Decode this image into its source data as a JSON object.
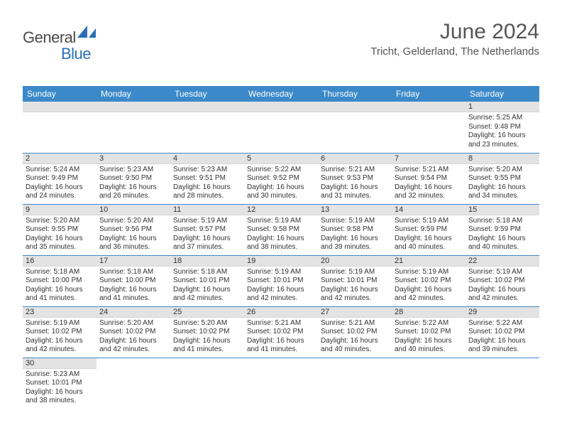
{
  "logo": {
    "part1": "General",
    "part2": "Blue"
  },
  "title": "June 2024",
  "location": "Tricht, Gelderland, The Netherlands",
  "header_bg": "#3b89c9",
  "header_text_color": "#ffffff",
  "daynum_bg": "#e3e3e3",
  "cell_border_color": "#3b89c9",
  "text_color": "#333333",
  "logo_accent": "#2a6fb5",
  "days_of_week": [
    "Sunday",
    "Monday",
    "Tuesday",
    "Wednesday",
    "Thursday",
    "Friday",
    "Saturday"
  ],
  "weeks": [
    [
      null,
      null,
      null,
      null,
      null,
      null,
      {
        "n": "1",
        "sunrise": "5:25 AM",
        "sunset": "9:48 PM",
        "dl_h": "16",
        "dl_m": "23"
      }
    ],
    [
      {
        "n": "2",
        "sunrise": "5:24 AM",
        "sunset": "9:49 PM",
        "dl_h": "16",
        "dl_m": "24"
      },
      {
        "n": "3",
        "sunrise": "5:23 AM",
        "sunset": "9:50 PM",
        "dl_h": "16",
        "dl_m": "26"
      },
      {
        "n": "4",
        "sunrise": "5:23 AM",
        "sunset": "9:51 PM",
        "dl_h": "16",
        "dl_m": "28"
      },
      {
        "n": "5",
        "sunrise": "5:22 AM",
        "sunset": "9:52 PM",
        "dl_h": "16",
        "dl_m": "30"
      },
      {
        "n": "6",
        "sunrise": "5:21 AM",
        "sunset": "9:53 PM",
        "dl_h": "16",
        "dl_m": "31"
      },
      {
        "n": "7",
        "sunrise": "5:21 AM",
        "sunset": "9:54 PM",
        "dl_h": "16",
        "dl_m": "32"
      },
      {
        "n": "8",
        "sunrise": "5:20 AM",
        "sunset": "9:55 PM",
        "dl_h": "16",
        "dl_m": "34"
      }
    ],
    [
      {
        "n": "9",
        "sunrise": "5:20 AM",
        "sunset": "9:55 PM",
        "dl_h": "16",
        "dl_m": "35"
      },
      {
        "n": "10",
        "sunrise": "5:20 AM",
        "sunset": "9:56 PM",
        "dl_h": "16",
        "dl_m": "36"
      },
      {
        "n": "11",
        "sunrise": "5:19 AM",
        "sunset": "9:57 PM",
        "dl_h": "16",
        "dl_m": "37"
      },
      {
        "n": "12",
        "sunrise": "5:19 AM",
        "sunset": "9:58 PM",
        "dl_h": "16",
        "dl_m": "38"
      },
      {
        "n": "13",
        "sunrise": "5:19 AM",
        "sunset": "9:58 PM",
        "dl_h": "16",
        "dl_m": "39"
      },
      {
        "n": "14",
        "sunrise": "5:19 AM",
        "sunset": "9:59 PM",
        "dl_h": "16",
        "dl_m": "40"
      },
      {
        "n": "15",
        "sunrise": "5:18 AM",
        "sunset": "9:59 PM",
        "dl_h": "16",
        "dl_m": "40"
      }
    ],
    [
      {
        "n": "16",
        "sunrise": "5:18 AM",
        "sunset": "10:00 PM",
        "dl_h": "16",
        "dl_m": "41"
      },
      {
        "n": "17",
        "sunrise": "5:18 AM",
        "sunset": "10:00 PM",
        "dl_h": "16",
        "dl_m": "41"
      },
      {
        "n": "18",
        "sunrise": "5:18 AM",
        "sunset": "10:01 PM",
        "dl_h": "16",
        "dl_m": "42"
      },
      {
        "n": "19",
        "sunrise": "5:19 AM",
        "sunset": "10:01 PM",
        "dl_h": "16",
        "dl_m": "42"
      },
      {
        "n": "20",
        "sunrise": "5:19 AM",
        "sunset": "10:01 PM",
        "dl_h": "16",
        "dl_m": "42"
      },
      {
        "n": "21",
        "sunrise": "5:19 AM",
        "sunset": "10:02 PM",
        "dl_h": "16",
        "dl_m": "42"
      },
      {
        "n": "22",
        "sunrise": "5:19 AM",
        "sunset": "10:02 PM",
        "dl_h": "16",
        "dl_m": "42"
      }
    ],
    [
      {
        "n": "23",
        "sunrise": "5:19 AM",
        "sunset": "10:02 PM",
        "dl_h": "16",
        "dl_m": "42"
      },
      {
        "n": "24",
        "sunrise": "5:20 AM",
        "sunset": "10:02 PM",
        "dl_h": "16",
        "dl_m": "42"
      },
      {
        "n": "25",
        "sunrise": "5:20 AM",
        "sunset": "10:02 PM",
        "dl_h": "16",
        "dl_m": "41"
      },
      {
        "n": "26",
        "sunrise": "5:21 AM",
        "sunset": "10:02 PM",
        "dl_h": "16",
        "dl_m": "41"
      },
      {
        "n": "27",
        "sunrise": "5:21 AM",
        "sunset": "10:02 PM",
        "dl_h": "16",
        "dl_m": "40"
      },
      {
        "n": "28",
        "sunrise": "5:22 AM",
        "sunset": "10:02 PM",
        "dl_h": "16",
        "dl_m": "40"
      },
      {
        "n": "29",
        "sunrise": "5:22 AM",
        "sunset": "10:02 PM",
        "dl_h": "16",
        "dl_m": "39"
      }
    ],
    [
      {
        "n": "30",
        "sunrise": "5:23 AM",
        "sunset": "10:01 PM",
        "dl_h": "16",
        "dl_m": "38"
      },
      null,
      null,
      null,
      null,
      null,
      null
    ]
  ],
  "labels": {
    "sunrise": "Sunrise:",
    "sunset": "Sunset:",
    "daylight": "Daylight:",
    "hours": "hours",
    "and": "and",
    "minutes": "minutes."
  }
}
